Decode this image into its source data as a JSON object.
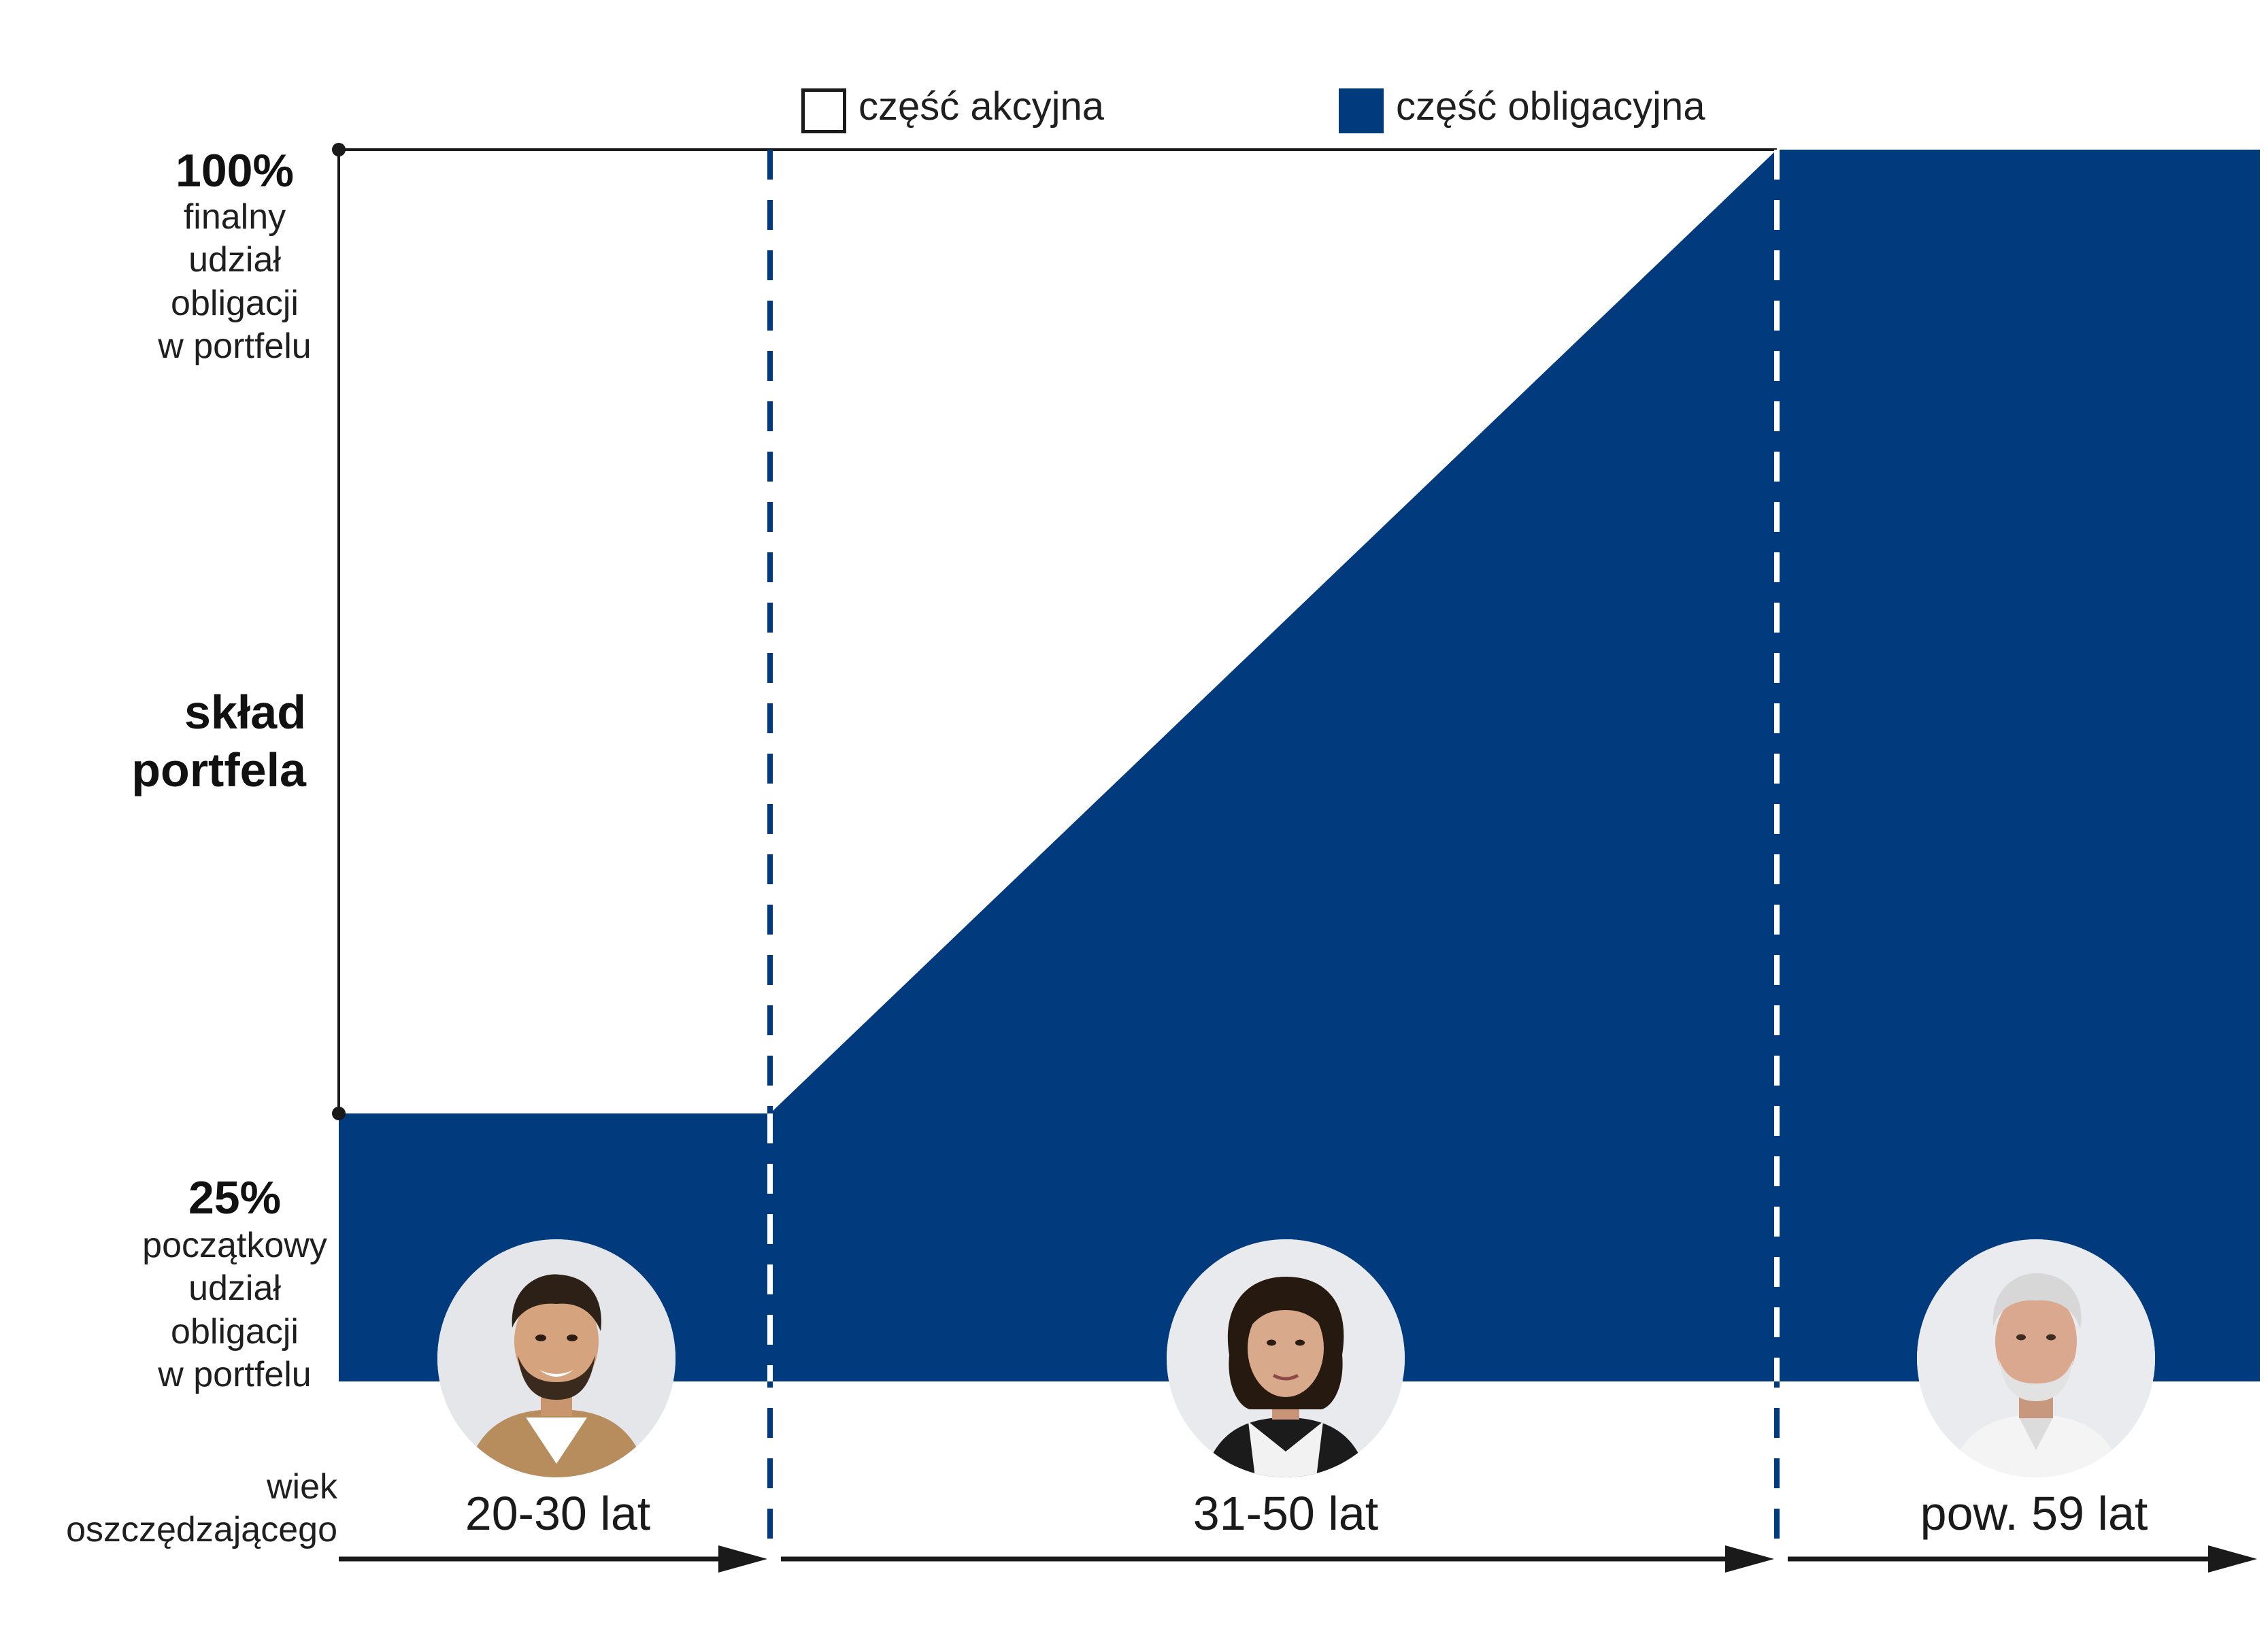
{
  "legend": {
    "equity_label": "część akcyjna",
    "bond_label": "część obligacyjna"
  },
  "y_axis": {
    "top_value": "100%",
    "top_lines": [
      "finalny",
      "udział",
      "obligacji",
      "w portfelu"
    ],
    "title_lines": [
      "skład",
      "portfela"
    ],
    "bottom_value": "25%",
    "bottom_lines": [
      "początkowy",
      "udział",
      "obligacji",
      "w portfelu"
    ]
  },
  "x_axis": {
    "title_lines": [
      "wiek",
      "oszczędzającego"
    ]
  },
  "segments": [
    {
      "label": "20-30 lat",
      "avatar": "young-man-avatar"
    },
    {
      "label": "31-50 lat",
      "avatar": "woman-avatar"
    },
    {
      "label": "pow. 59 lat",
      "avatar": "senior-man-avatar"
    }
  ],
  "colors": {
    "bond": "#023a7e",
    "equity": "#ffffff",
    "axis": "#1a1a1a",
    "divider": "#023a7e"
  },
  "chart_data": {
    "type": "area",
    "title": "",
    "categories": [
      "20-30 lat",
      "31-50 lat",
      "pow. 59 lat"
    ],
    "series": [
      {
        "name": "część obligacyjna",
        "profile": [
          [
            0,
            25
          ],
          [
            1,
            25
          ],
          [
            1,
            25
          ],
          [
            2,
            100
          ],
          [
            3,
            100
          ]
        ]
      },
      {
        "name": "część akcyjna",
        "profile": [
          [
            0,
            75
          ],
          [
            1,
            75
          ],
          [
            1,
            75
          ],
          [
            2,
            0
          ],
          [
            3,
            0
          ]
        ]
      }
    ],
    "ylim": [
      0,
      100
    ],
    "y_ticks": [
      "25%",
      "100%"
    ],
    "ylabel": "skład portfela",
    "xlabel": "wiek oszczędzającego",
    "legend": "top-center"
  }
}
